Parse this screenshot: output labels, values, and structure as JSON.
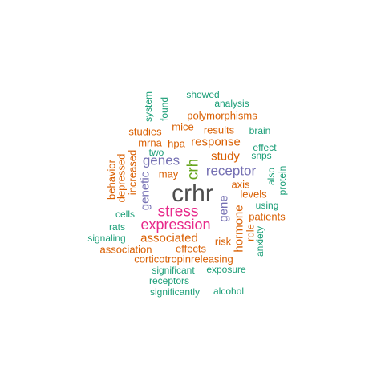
{
  "colors": {
    "gray": "#4d4d4d",
    "pink": "#e7298a",
    "purple": "#7570b3",
    "green": "#66a61e",
    "orange": "#d95f02",
    "teal": "#1b9e77"
  },
  "words": [
    {
      "text": "crhr",
      "color": "gray"
    },
    {
      "text": "stress",
      "color": "pink"
    },
    {
      "text": "expression",
      "color": "pink"
    },
    {
      "text": "crh",
      "color": "green"
    },
    {
      "text": "genes",
      "color": "purple"
    },
    {
      "text": "receptor",
      "color": "purple"
    },
    {
      "text": "genetic",
      "color": "purple"
    },
    {
      "text": "gene",
      "color": "purple"
    },
    {
      "text": "study",
      "color": "orange"
    },
    {
      "text": "response",
      "color": "orange"
    },
    {
      "text": "associated",
      "color": "orange"
    },
    {
      "text": "hormone",
      "color": "orange"
    },
    {
      "text": "polymorphisms",
      "color": "orange"
    },
    {
      "text": "results",
      "color": "orange"
    },
    {
      "text": "mice",
      "color": "orange"
    },
    {
      "text": "studies",
      "color": "orange"
    },
    {
      "text": "hpa",
      "color": "orange"
    },
    {
      "text": "mrna",
      "color": "orange"
    },
    {
      "text": "may",
      "color": "orange"
    },
    {
      "text": "axis",
      "color": "orange"
    },
    {
      "text": "levels",
      "color": "orange"
    },
    {
      "text": "patients",
      "color": "orange"
    },
    {
      "text": "risk",
      "color": "orange"
    },
    {
      "text": "effects",
      "color": "orange"
    },
    {
      "text": "association",
      "color": "orange"
    },
    {
      "text": "corticotropinreleasing",
      "color": "orange"
    },
    {
      "text": "increased",
      "color": "orange"
    },
    {
      "text": "depressed",
      "color": "orange"
    },
    {
      "text": "behavior",
      "color": "orange"
    },
    {
      "text": "role",
      "color": "orange"
    },
    {
      "text": "showed",
      "color": "teal"
    },
    {
      "text": "analysis",
      "color": "teal"
    },
    {
      "text": "system",
      "color": "teal"
    },
    {
      "text": "found",
      "color": "teal"
    },
    {
      "text": "brain",
      "color": "teal"
    },
    {
      "text": "effect",
      "color": "teal"
    },
    {
      "text": "snps",
      "color": "teal"
    },
    {
      "text": "two",
      "color": "teal"
    },
    {
      "text": "also",
      "color": "teal"
    },
    {
      "text": "protein",
      "color": "teal"
    },
    {
      "text": "using",
      "color": "teal"
    },
    {
      "text": "cells",
      "color": "teal"
    },
    {
      "text": "rats",
      "color": "teal"
    },
    {
      "text": "signaling",
      "color": "teal"
    },
    {
      "text": "anxiety",
      "color": "teal"
    },
    {
      "text": "significant",
      "color": "teal"
    },
    {
      "text": "exposure",
      "color": "teal"
    },
    {
      "text": "receptors",
      "color": "teal"
    },
    {
      "text": "significantly",
      "color": "teal"
    },
    {
      "text": "alcohol",
      "color": "teal"
    }
  ]
}
